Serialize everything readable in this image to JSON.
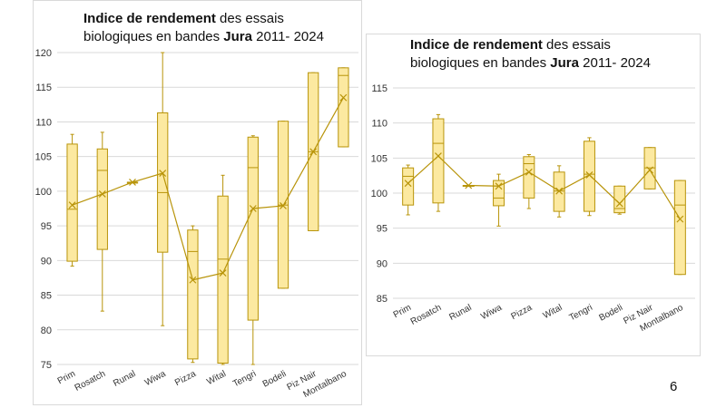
{
  "slide": {
    "number": "6"
  },
  "colors": {
    "box_fill": "#fce9a0",
    "stroke": "#b8940a",
    "grid": "#d9d9d9",
    "text": "#333333"
  },
  "chart_data": [
    {
      "type": "box",
      "title_bold": "Indice de rendement",
      "title_rest": " des essais",
      "title_line2_pre": "biologiques en bandes ",
      "title_line2_bold": "Jura",
      "title_line2_post": " 2011- 2024",
      "ylim": [
        75,
        120
      ],
      "yticks": [
        "75",
        "80",
        "85",
        "90",
        "95",
        "100",
        "105",
        "110",
        "115",
        "120"
      ],
      "categories": [
        "Prim",
        "Rosatch",
        "Runal",
        "Wiwa",
        "Pizza",
        "Wital",
        "Tengri",
        "Bodeli",
        "Piz Nair",
        "Montalbano"
      ],
      "min": [
        89.2,
        82.7,
        101.3,
        80.6,
        75.3,
        75.0,
        75.0,
        86.0,
        94.3,
        106.4
      ],
      "q1": [
        89.9,
        91.6,
        101.3,
        91.2,
        75.8,
        75.2,
        81.4,
        86.0,
        94.3,
        106.4
      ],
      "median": [
        97.4,
        103.0,
        101.3,
        99.8,
        91.3,
        90.2,
        103.4,
        98.0,
        105.7,
        116.7
      ],
      "q3": [
        106.8,
        106.1,
        101.3,
        111.3,
        94.4,
        99.3,
        107.8,
        110.1,
        117.1,
        117.8
      ],
      "max": [
        108.2,
        108.5,
        101.3,
        120.0,
        95.0,
        102.3,
        108.0,
        110.1,
        117.1,
        117.8
      ],
      "mean": [
        98.0,
        99.6,
        101.3,
        102.6,
        87.2,
        88.2,
        97.5,
        97.9,
        105.7,
        113.5
      ]
    },
    {
      "type": "box",
      "title_bold": "Indice de rendement",
      "title_rest": " des essais",
      "title_line2_pre": "biologiques en bandes ",
      "title_line2_bold": "Jura",
      "title_line2_post": " 2011- 2024",
      "ylim": [
        85,
        115
      ],
      "yticks": [
        "85",
        "90",
        "95",
        "100",
        "105",
        "110",
        "115"
      ],
      "categories": [
        "Prim",
        "Rosatch",
        "Runal",
        "Wiwa",
        "Pizza",
        "Wital",
        "Tengri",
        "Bodeli",
        "Piz Nair",
        "Montalbano"
      ],
      "min": [
        96.9,
        97.4,
        101.1,
        95.3,
        97.8,
        96.6,
        96.8,
        97.0,
        100.6,
        88.4
      ],
      "q1": [
        98.3,
        98.6,
        101.1,
        98.2,
        99.3,
        97.4,
        97.4,
        97.2,
        100.6,
        88.4
      ],
      "median": [
        102.4,
        107.1,
        101.1,
        99.3,
        104.2,
        100.3,
        102.7,
        97.8,
        103.6,
        98.3
      ],
      "q3": [
        103.6,
        110.6,
        101.1,
        101.8,
        105.2,
        103.0,
        107.4,
        101.0,
        106.5,
        101.8
      ],
      "max": [
        104.0,
        111.2,
        101.1,
        102.7,
        105.5,
        103.9,
        107.9,
        101.0,
        106.5,
        101.8
      ],
      "mean": [
        101.4,
        105.3,
        101.1,
        101.0,
        103.0,
        100.3,
        102.6,
        98.5,
        103.3,
        96.3
      ]
    }
  ]
}
